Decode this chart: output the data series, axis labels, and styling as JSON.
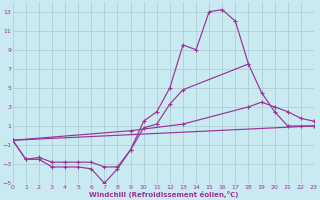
{
  "background_color": "#c8eaf0",
  "grid_color": "#b0cfd8",
  "line_color": "#993399",
  "xlabel": "Windchill (Refroidissement éolien,°C)",
  "xlim": [
    0,
    23
  ],
  "ylim": [
    -5,
    14
  ],
  "yticks": [
    -5,
    -3,
    -1,
    1,
    3,
    5,
    7,
    9,
    11,
    13
  ],
  "xticks": [
    0,
    1,
    2,
    3,
    4,
    5,
    6,
    7,
    8,
    9,
    10,
    11,
    12,
    13,
    14,
    15,
    16,
    17,
    18,
    19,
    20,
    21,
    22,
    23
  ],
  "lines": [
    {
      "x": [
        0,
        1,
        2,
        3,
        4,
        5,
        6,
        7,
        8,
        9,
        10,
        11,
        12,
        13,
        14,
        15,
        16,
        17,
        18
      ],
      "y": [
        -0.5,
        -2.5,
        -2.5,
        -3.3,
        -3.3,
        -3.3,
        -3.5,
        -5.0,
        -3.5,
        -1.5,
        1.5,
        2.5,
        5.0,
        9.5,
        9.0,
        13.0,
        13.2,
        12.0,
        7.5
      ],
      "markers": true
    },
    {
      "x": [
        0,
        1,
        2,
        3,
        4,
        5,
        6,
        7,
        8,
        9,
        10,
        11,
        12,
        13,
        18,
        19,
        20,
        21,
        22,
        23
      ],
      "y": [
        -0.5,
        -2.5,
        -2.3,
        -2.8,
        -2.8,
        -2.8,
        -2.8,
        -3.3,
        -3.3,
        -1.5,
        0.8,
        1.2,
        3.3,
        4.8,
        7.5,
        4.5,
        2.5,
        1.0,
        1.0,
        1.0
      ],
      "markers": true
    },
    {
      "x": [
        0,
        9,
        13,
        18,
        19,
        20,
        21,
        22,
        23
      ],
      "y": [
        -0.5,
        0.5,
        1.2,
        3.0,
        3.5,
        3.0,
        2.5,
        1.8,
        1.5
      ],
      "markers": true
    },
    {
      "x": [
        0,
        23
      ],
      "y": [
        -0.5,
        1.0
      ],
      "markers": false
    }
  ],
  "figsize": [
    3.2,
    2.0
  ],
  "dpi": 100
}
